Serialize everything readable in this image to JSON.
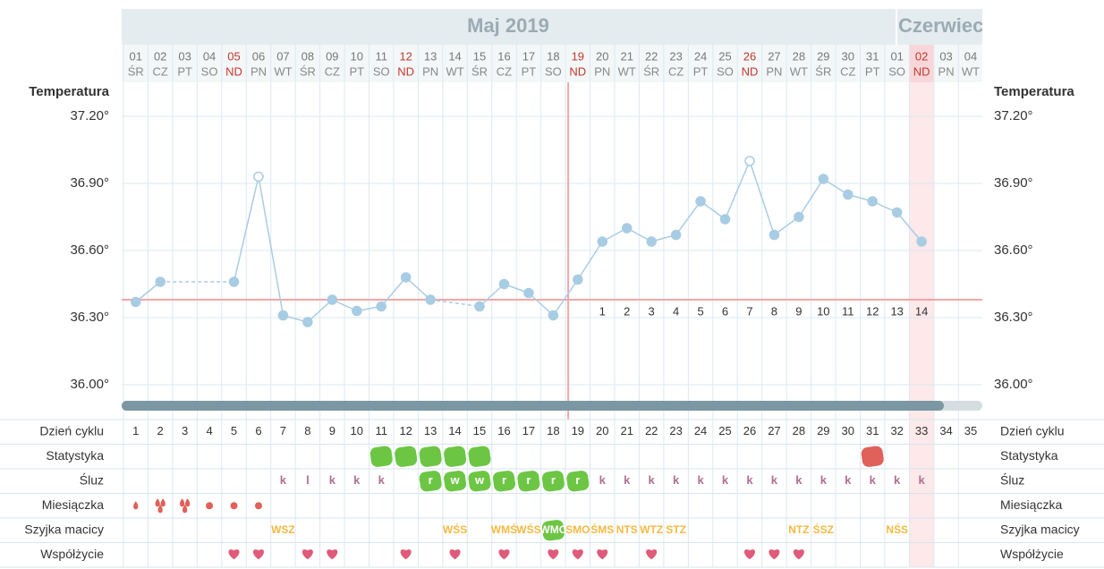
{
  "header": {
    "months": [
      "Maj 2019",
      "Czerwiec"
    ]
  },
  "dates": [
    "01",
    "02",
    "03",
    "04",
    "05",
    "06",
    "07",
    "08",
    "09",
    "10",
    "11",
    "12",
    "13",
    "14",
    "15",
    "16",
    "17",
    "18",
    "19",
    "20",
    "21",
    "22",
    "23",
    "24",
    "25",
    "26",
    "27",
    "28",
    "29",
    "30",
    "31",
    "01",
    "02",
    "03",
    "04"
  ],
  "weekdays": [
    "ŚR",
    "CZ",
    "PT",
    "SO",
    "ND",
    "PN",
    "WT",
    "ŚR",
    "CZ",
    "PT",
    "SO",
    "ND",
    "PN",
    "WT",
    "ŚR",
    "CZ",
    "PT",
    "SO",
    "ND",
    "PN",
    "WT",
    "ŚR",
    "CZ",
    "PT",
    "SO",
    "ND",
    "PN",
    "WT",
    "ŚR",
    "CZ",
    "PT",
    "SO",
    "ND",
    "PN",
    "WT"
  ],
  "sunday_indices": [
    4,
    11,
    18,
    25,
    32
  ],
  "sunday_color": "#c0392b",
  "highlight_index": 32,
  "chart_data": {
    "type": "line",
    "axis_label": "Temperatura",
    "series": [
      {
        "color": "#a8cce3",
        "values": [
          36.37,
          36.46,
          null,
          null,
          36.46,
          36.93,
          36.31,
          36.28,
          36.38,
          36.33,
          36.35,
          36.48,
          36.38,
          null,
          36.35,
          36.45,
          36.41,
          36.31,
          36.47,
          36.64,
          36.7,
          36.64,
          36.67,
          36.82,
          36.74,
          37.0,
          36.67,
          36.75,
          36.92,
          36.85,
          36.82,
          36.77,
          36.64,
          null,
          null
        ]
      }
    ],
    "open_points": [
      5,
      25
    ],
    "ylim": [
      35.9,
      37.26
    ],
    "yticks": [
      {
        "value": 37.2,
        "label": "37.20°"
      },
      {
        "value": 36.9,
        "label": "36.90°"
      },
      {
        "value": 36.6,
        "label": "36.60°"
      },
      {
        "value": 36.3,
        "label": "36.30°"
      },
      {
        "value": 36.0,
        "label": "36.00°"
      }
    ],
    "grid": true,
    "coverline": 36.38,
    "coverline_color": "#f4a5a5",
    "ovulation_index": 18,
    "phase_labels": [
      null,
      null,
      null,
      null,
      null,
      null,
      null,
      null,
      null,
      null,
      null,
      null,
      null,
      null,
      null,
      null,
      null,
      null,
      null,
      "1",
      "2",
      "3",
      "4",
      "5",
      "6",
      "7",
      "8",
      "9",
      "10",
      "11",
      "12",
      "13",
      "14",
      null,
      null
    ]
  },
  "rows": {
    "labels": [
      "Dzień cyklu",
      "Statystyka",
      "Śluz",
      "Miesiączka",
      "Szyjka macicy",
      "Współżycie"
    ],
    "cycle_days": [
      1,
      2,
      3,
      4,
      5,
      6,
      7,
      8,
      9,
      10,
      11,
      12,
      13,
      14,
      15,
      16,
      17,
      18,
      19,
      20,
      21,
      22,
      23,
      24,
      25,
      26,
      27,
      28,
      29,
      30,
      31,
      32,
      33,
      34,
      35
    ],
    "statystyka": [
      null,
      null,
      null,
      null,
      null,
      null,
      null,
      null,
      null,
      null,
      "#6cc644",
      "#6cc644",
      "#6cc644",
      "#6cc644",
      "#6cc644",
      null,
      null,
      null,
      null,
      null,
      null,
      null,
      null,
      null,
      null,
      null,
      null,
      null,
      null,
      null,
      "#e0605a",
      null,
      null,
      null,
      null
    ],
    "sluz": [
      null,
      null,
      null,
      null,
      null,
      null,
      "k",
      "l",
      "k",
      "k",
      "k",
      null,
      "r",
      "w",
      "w",
      "r",
      "r",
      "r",
      "r",
      "k",
      "k",
      "k",
      "k",
      "k",
      "k",
      "k",
      "k",
      "k",
      "k",
      "k",
      "k",
      "k",
      "k",
      null,
      null
    ],
    "sluz_badges": [
      12,
      13,
      14,
      15,
      16,
      17,
      18
    ],
    "miesiaczka": [
      2,
      3,
      3,
      1,
      1,
      1,
      null,
      null,
      null,
      null,
      null,
      null,
      null,
      null,
      null,
      null,
      null,
      null,
      null,
      null,
      null,
      null,
      null,
      null,
      null,
      null,
      null,
      null,
      null,
      null,
      null,
      null,
      null,
      null,
      null
    ],
    "szyjka": [
      null,
      null,
      null,
      null,
      null,
      null,
      "WSZ",
      null,
      null,
      null,
      null,
      null,
      null,
      "WŚS",
      null,
      "WMŚ",
      "WŚS",
      "WMC",
      "SMO",
      "ŚMS",
      "NTS",
      "WTZ",
      "STZ",
      null,
      null,
      null,
      null,
      "NTZ",
      "ŚSZ",
      null,
      null,
      "NŚS",
      null,
      null,
      null
    ],
    "szyjka_badges": [
      17
    ],
    "wspolzycie": [
      4,
      5,
      7,
      8,
      11,
      13,
      15,
      17,
      18,
      19,
      21,
      25,
      26,
      27
    ]
  }
}
